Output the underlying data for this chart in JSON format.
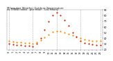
{
  "title_line1": "Milwaukee Weather Outdoor Temperature",
  "title_line2": "vs THSW Index   per Hour   (24 Hours)",
  "title_fontsize": 2.8,
  "background_color": "#ffffff",
  "grid_color": "#b0b0b0",
  "hours": [
    0,
    1,
    2,
    3,
    4,
    5,
    6,
    7,
    8,
    9,
    10,
    11,
    12,
    13,
    14,
    15,
    16,
    17,
    18,
    19,
    20,
    21,
    22,
    23
  ],
  "temp": [
    35,
    34,
    33,
    33,
    32,
    32,
    31,
    33,
    37,
    42,
    47,
    51,
    53,
    52,
    50,
    48,
    45,
    43,
    40,
    38,
    37,
    36,
    35,
    35
  ],
  "thsw": [
    30,
    29,
    28,
    28,
    27,
    27,
    26,
    30,
    40,
    55,
    70,
    80,
    85,
    80,
    72,
    62,
    50,
    43,
    36,
    32,
    30,
    29,
    28,
    28
  ],
  "temp_color": "#ff8800",
  "thsw_color": "#cc2200",
  "dot_size": 2.5,
  "ylim": [
    20,
    90
  ],
  "ytick_vals": [
    20,
    30,
    40,
    50,
    60,
    70,
    80,
    90
  ],
  "ytick_labels": [
    "20",
    "30",
    "40",
    "50",
    "60",
    "70",
    "80",
    "90"
  ],
  "vgrid_positions": [
    0,
    6,
    12,
    18,
    23
  ],
  "tick_fontsize": 2.5,
  "xtick_labels": [
    "0",
    "1",
    "2",
    "3",
    "4",
    "5",
    "6",
    "7",
    "8",
    "9",
    "10",
    "11",
    "12",
    "13",
    "14",
    "15",
    "16",
    "17",
    "18",
    "19",
    "20",
    "21",
    "22",
    "23"
  ]
}
